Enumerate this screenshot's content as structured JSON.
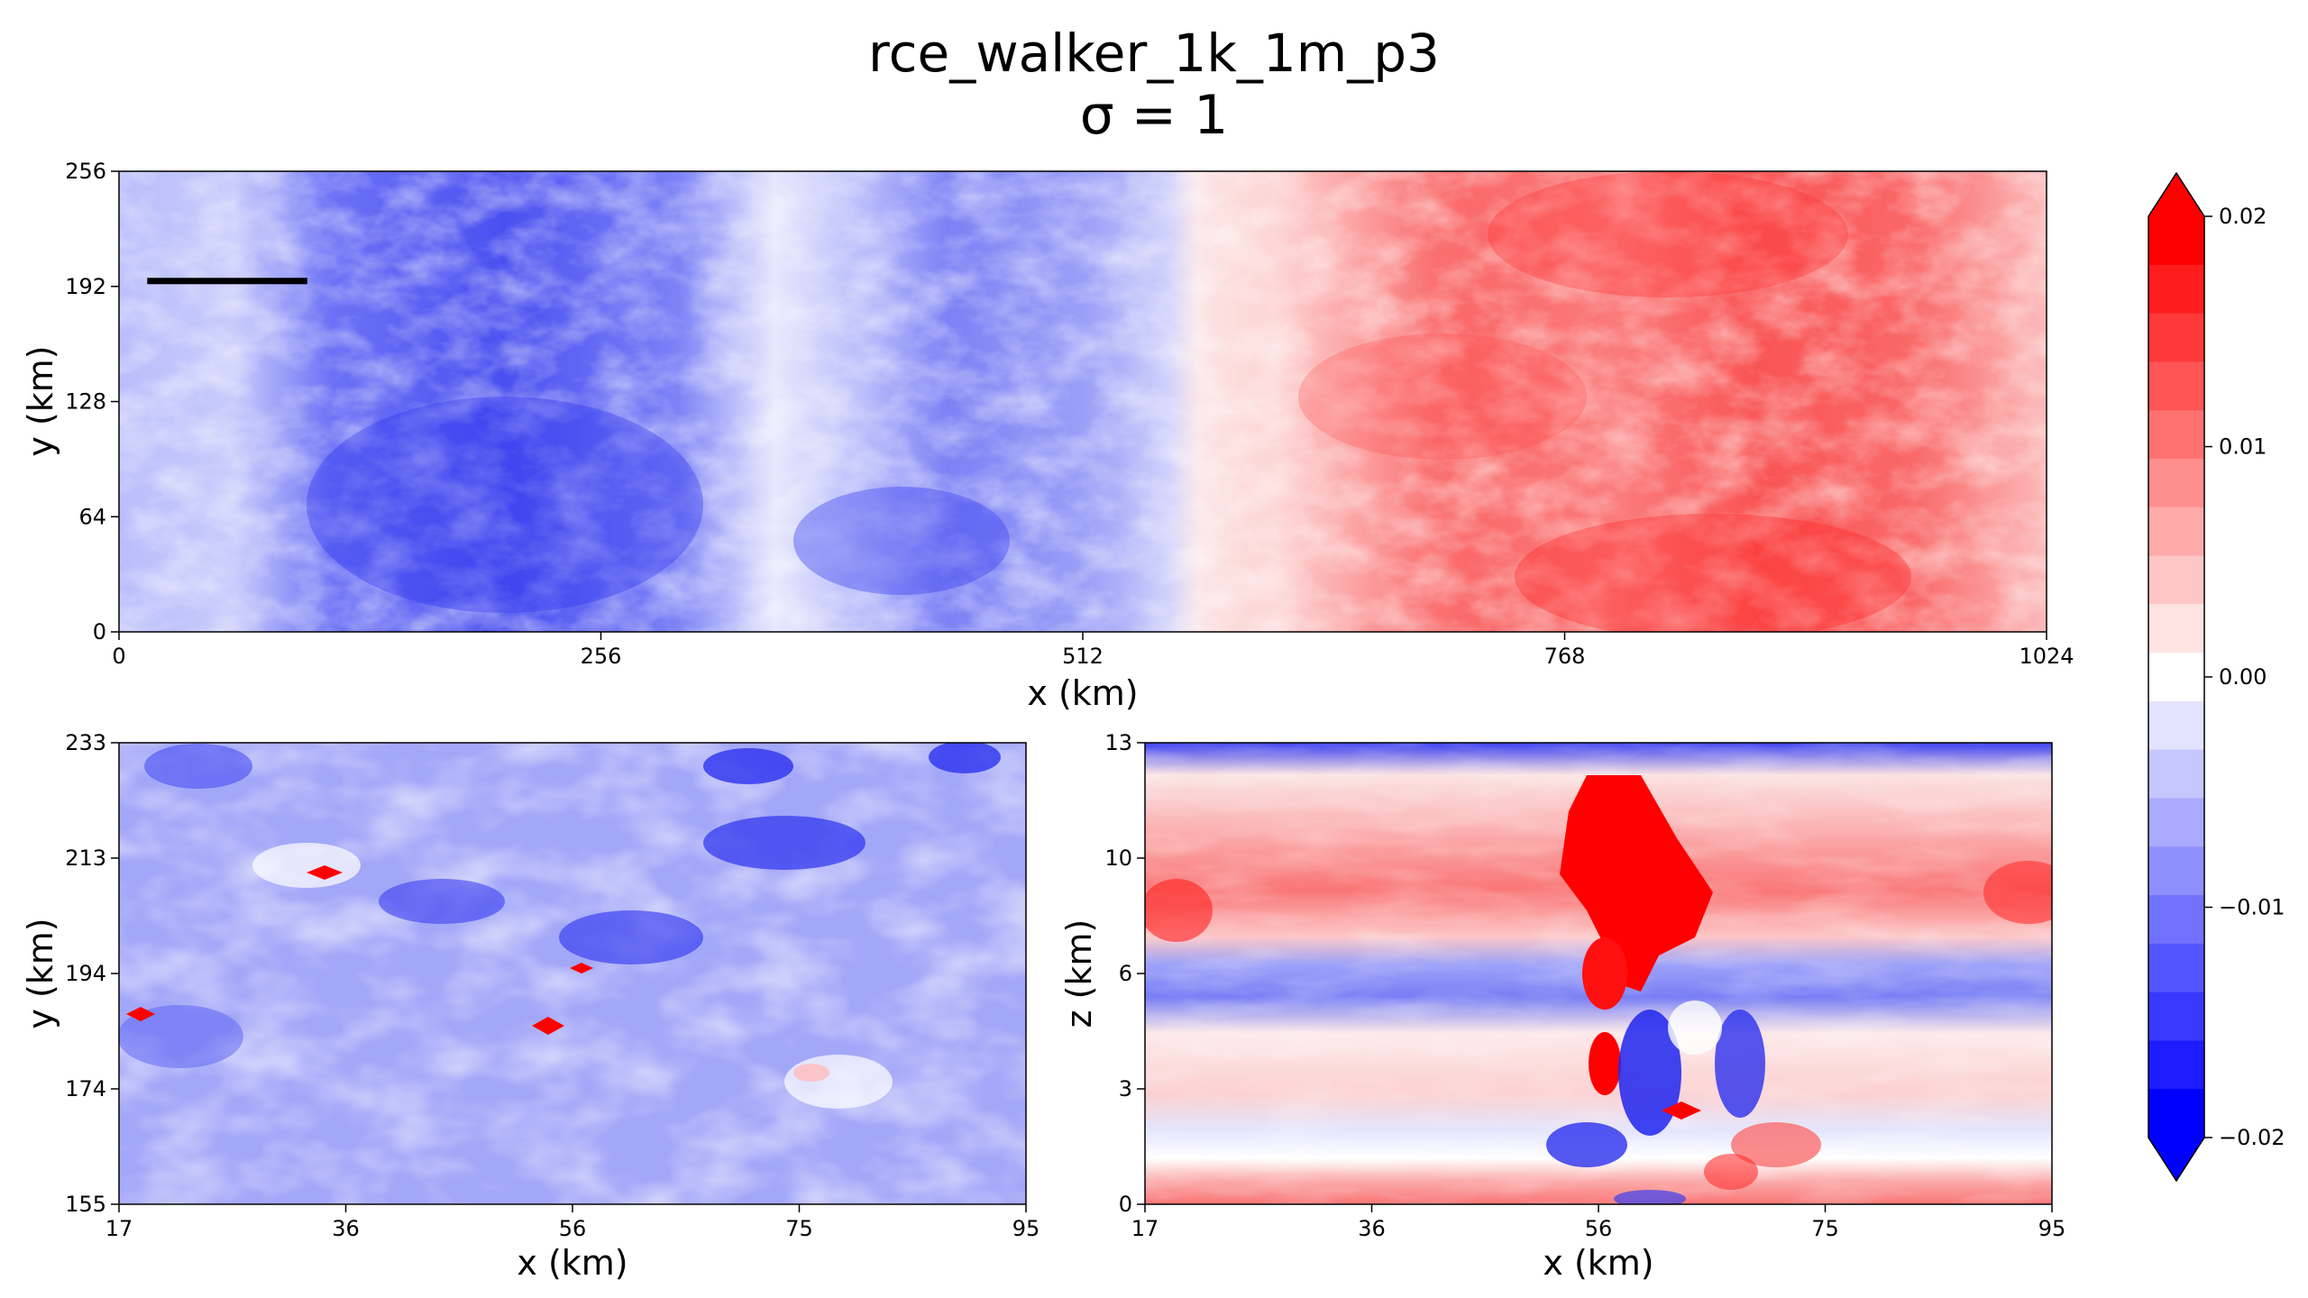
{
  "figure": {
    "title": "rce_walker_1k_1m_p3",
    "subtitle": "σ = 1"
  },
  "chart_data": [
    {
      "type": "heatmap",
      "panel": "top",
      "xlabel": "x (km)",
      "ylabel": "y (km)",
      "xlim": [
        0,
        1024
      ],
      "ylim": [
        0,
        256
      ],
      "xticks": [
        "0",
        "256",
        "512",
        "768",
        "1024"
      ],
      "yticks": [
        "0",
        "64",
        "128",
        "192",
        "256"
      ],
      "annotation": {
        "type": "line",
        "x": [
          15,
          100
        ],
        "y": 195
      },
      "field_description": "blue (negative) on left half x<560, red (positive) on right half x>560"
    },
    {
      "type": "heatmap",
      "panel": "bottom-left",
      "xlabel": "x (km)",
      "ylabel": "y (km)",
      "xlim": [
        17,
        95
      ],
      "ylim": [
        155,
        233
      ],
      "xticks": [
        "17",
        "36",
        "56",
        "75",
        "95"
      ],
      "yticks": [
        "155",
        "174",
        "194",
        "213",
        "233"
      ]
    },
    {
      "type": "heatmap",
      "panel": "bottom-right",
      "xlabel": "x (km)",
      "ylabel": "z (km)",
      "xlim": [
        17,
        95
      ],
      "ylim": [
        0,
        14
      ],
      "xticks": [
        "17",
        "36",
        "56",
        "75",
        "95"
      ],
      "yticks": [
        "0",
        "3",
        "6",
        "10",
        "13"
      ]
    }
  ],
  "colorbar": {
    "min": -0.02,
    "max": 0.02,
    "levels": 19,
    "extend": "both",
    "ticks": [
      "0.02",
      "0.01",
      "0.00",
      "−0.01",
      "−0.02"
    ],
    "colormap": "bwr",
    "low_color": "#0000ff",
    "mid_color": "#ffffff",
    "high_color": "#ff0000"
  }
}
